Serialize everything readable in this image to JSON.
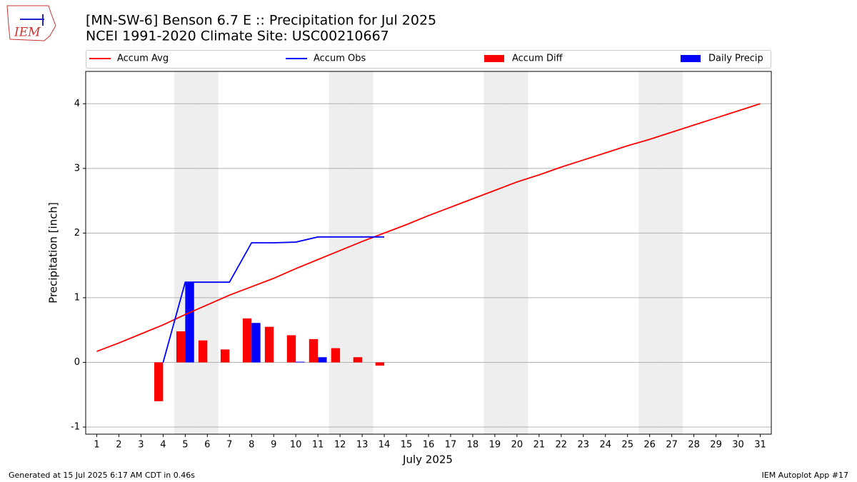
{
  "chart_data": {
    "type": "bar",
    "title": "[MN-SW-6] Benson 6.7 E :: Precipitation for Jul 2025",
    "subtitle": "NCEI 1991-2020 Climate Site: USC00210667",
    "logo_text": "IEM",
    "x_label": "July 2025",
    "y_label": "Precipitation [inch]",
    "footer_left": "Generated at 15 Jul 2025 6:17 AM CDT in 0.46s",
    "footer_right": "IEM Autoplot App #17",
    "x": [
      1,
      2,
      3,
      4,
      5,
      6,
      7,
      8,
      9,
      10,
      11,
      12,
      13,
      14,
      15,
      16,
      17,
      18,
      19,
      20,
      21,
      22,
      23,
      24,
      25,
      26,
      27,
      28,
      29,
      30,
      31
    ],
    "xlim": [
      0.5,
      31.5
    ],
    "xticks": [
      1,
      2,
      3,
      4,
      5,
      6,
      7,
      8,
      9,
      10,
      11,
      12,
      13,
      14,
      15,
      16,
      17,
      18,
      19,
      20,
      21,
      22,
      23,
      24,
      25,
      26,
      27,
      28,
      29,
      30,
      31
    ],
    "ylim": [
      -1.11,
      4.5
    ],
    "yticks": [
      -1,
      0,
      1,
      2,
      3,
      4
    ],
    "grid": true,
    "shaded_days": [
      5,
      6,
      12,
      13,
      19,
      20,
      26,
      27
    ],
    "series": [
      {
        "name": "Accum Avg",
        "type": "line",
        "color": "#ff0000",
        "values": [
          0.17,
          0.3,
          0.44,
          0.58,
          0.74,
          0.89,
          1.04,
          1.17,
          1.3,
          1.45,
          1.59,
          1.73,
          1.87,
          2.0,
          2.13,
          2.27,
          2.4,
          2.53,
          2.66,
          2.79,
          2.9,
          3.02,
          3.13,
          3.24,
          3.35,
          3.45,
          3.56,
          3.67,
          3.78,
          3.89,
          4.0
        ]
      },
      {
        "name": "Accum Obs",
        "type": "line",
        "color": "#0000ff",
        "values": [
          null,
          null,
          null,
          0,
          1.24,
          1.24,
          1.24,
          1.85,
          1.85,
          1.86,
          1.94,
          1.94,
          1.94,
          1.94,
          null,
          null,
          null,
          null,
          null,
          null,
          null,
          null,
          null,
          null,
          null,
          null,
          null,
          null,
          null,
          null,
          null
        ]
      },
      {
        "name": "Accum Diff",
        "type": "bar",
        "color": "#ff0000",
        "values": [
          null,
          null,
          null,
          -0.6,
          0.48,
          0.34,
          0.2,
          0.68,
          0.55,
          0.42,
          0.36,
          0.22,
          0.08,
          -0.05,
          null,
          null,
          null,
          null,
          null,
          null,
          null,
          null,
          null,
          null,
          null,
          null,
          null,
          null,
          null,
          null,
          null
        ]
      },
      {
        "name": "Daily Precip",
        "type": "bar",
        "color": "#0000ff",
        "values": [
          null,
          null,
          null,
          0,
          1.24,
          0,
          0,
          0.61,
          0,
          0.01,
          0.08,
          0,
          0,
          0,
          null,
          null,
          null,
          null,
          null,
          null,
          null,
          null,
          null,
          null,
          null,
          null,
          null,
          null,
          null,
          null,
          null
        ]
      }
    ]
  }
}
